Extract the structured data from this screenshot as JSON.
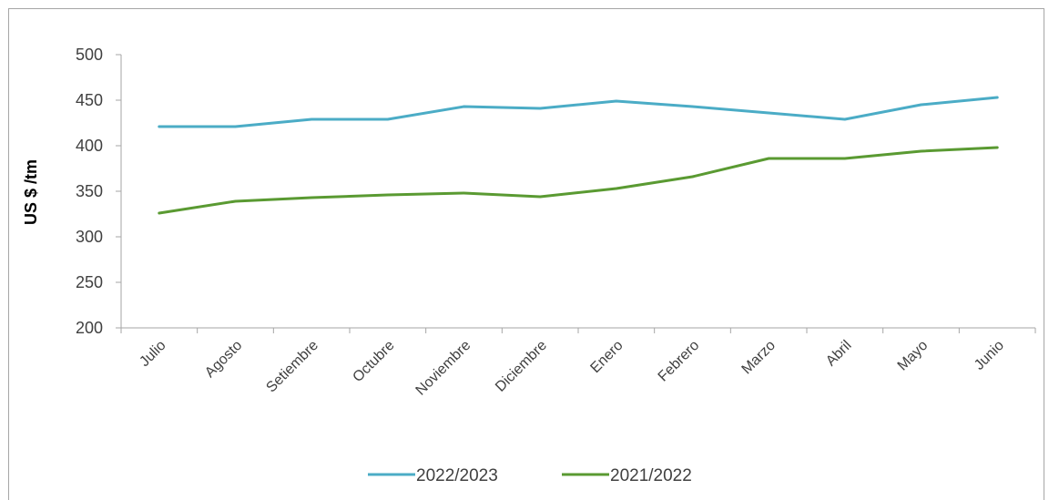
{
  "chart_data": {
    "type": "line",
    "title": "",
    "xlabel": "",
    "ylabel": "US $ /tm",
    "ylim": [
      200,
      500
    ],
    "yticks": [
      200,
      250,
      300,
      350,
      400,
      450,
      500
    ],
    "categories": [
      "Julio",
      "Agosto",
      "Setiembre",
      "Octubre",
      "Noviembre",
      "Diciembre",
      "Enero",
      "Febrero",
      "Marzo",
      "Abril",
      "Mayo",
      "Junio"
    ],
    "series": [
      {
        "name": "2022/2023",
        "color": "#4bacc6",
        "values": [
          421,
          421,
          429,
          429,
          443,
          441,
          449,
          443,
          436,
          429,
          445,
          453
        ]
      },
      {
        "name": "2021/2022",
        "color": "#5a9a32",
        "values": [
          326,
          339,
          343,
          346,
          348,
          344,
          353,
          366,
          386,
          386,
          394,
          398
        ]
      }
    ],
    "grid": false,
    "legend_position": "bottom"
  }
}
